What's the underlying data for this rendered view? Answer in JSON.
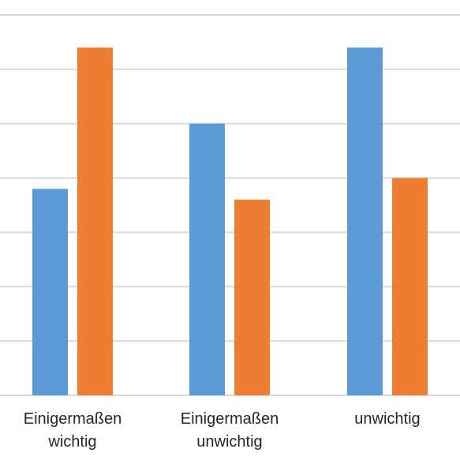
{
  "chart_data": {
    "type": "bar",
    "categories": [
      [
        "Einigermaßen",
        "wichtig"
      ],
      [
        "Einigermaßen",
        "unwichtig"
      ],
      [
        "unwichtig"
      ]
    ],
    "series": [
      {
        "values": [
          3.8,
          5.0,
          6.4
        ],
        "color": "#5B9BD5"
      },
      {
        "values": [
          6.4,
          3.6,
          4.0
        ],
        "color": "#ED7D31"
      }
    ],
    "ylim": [
      0,
      7
    ],
    "grid": true,
    "title": "",
    "xlabel": "",
    "ylabel": ""
  }
}
